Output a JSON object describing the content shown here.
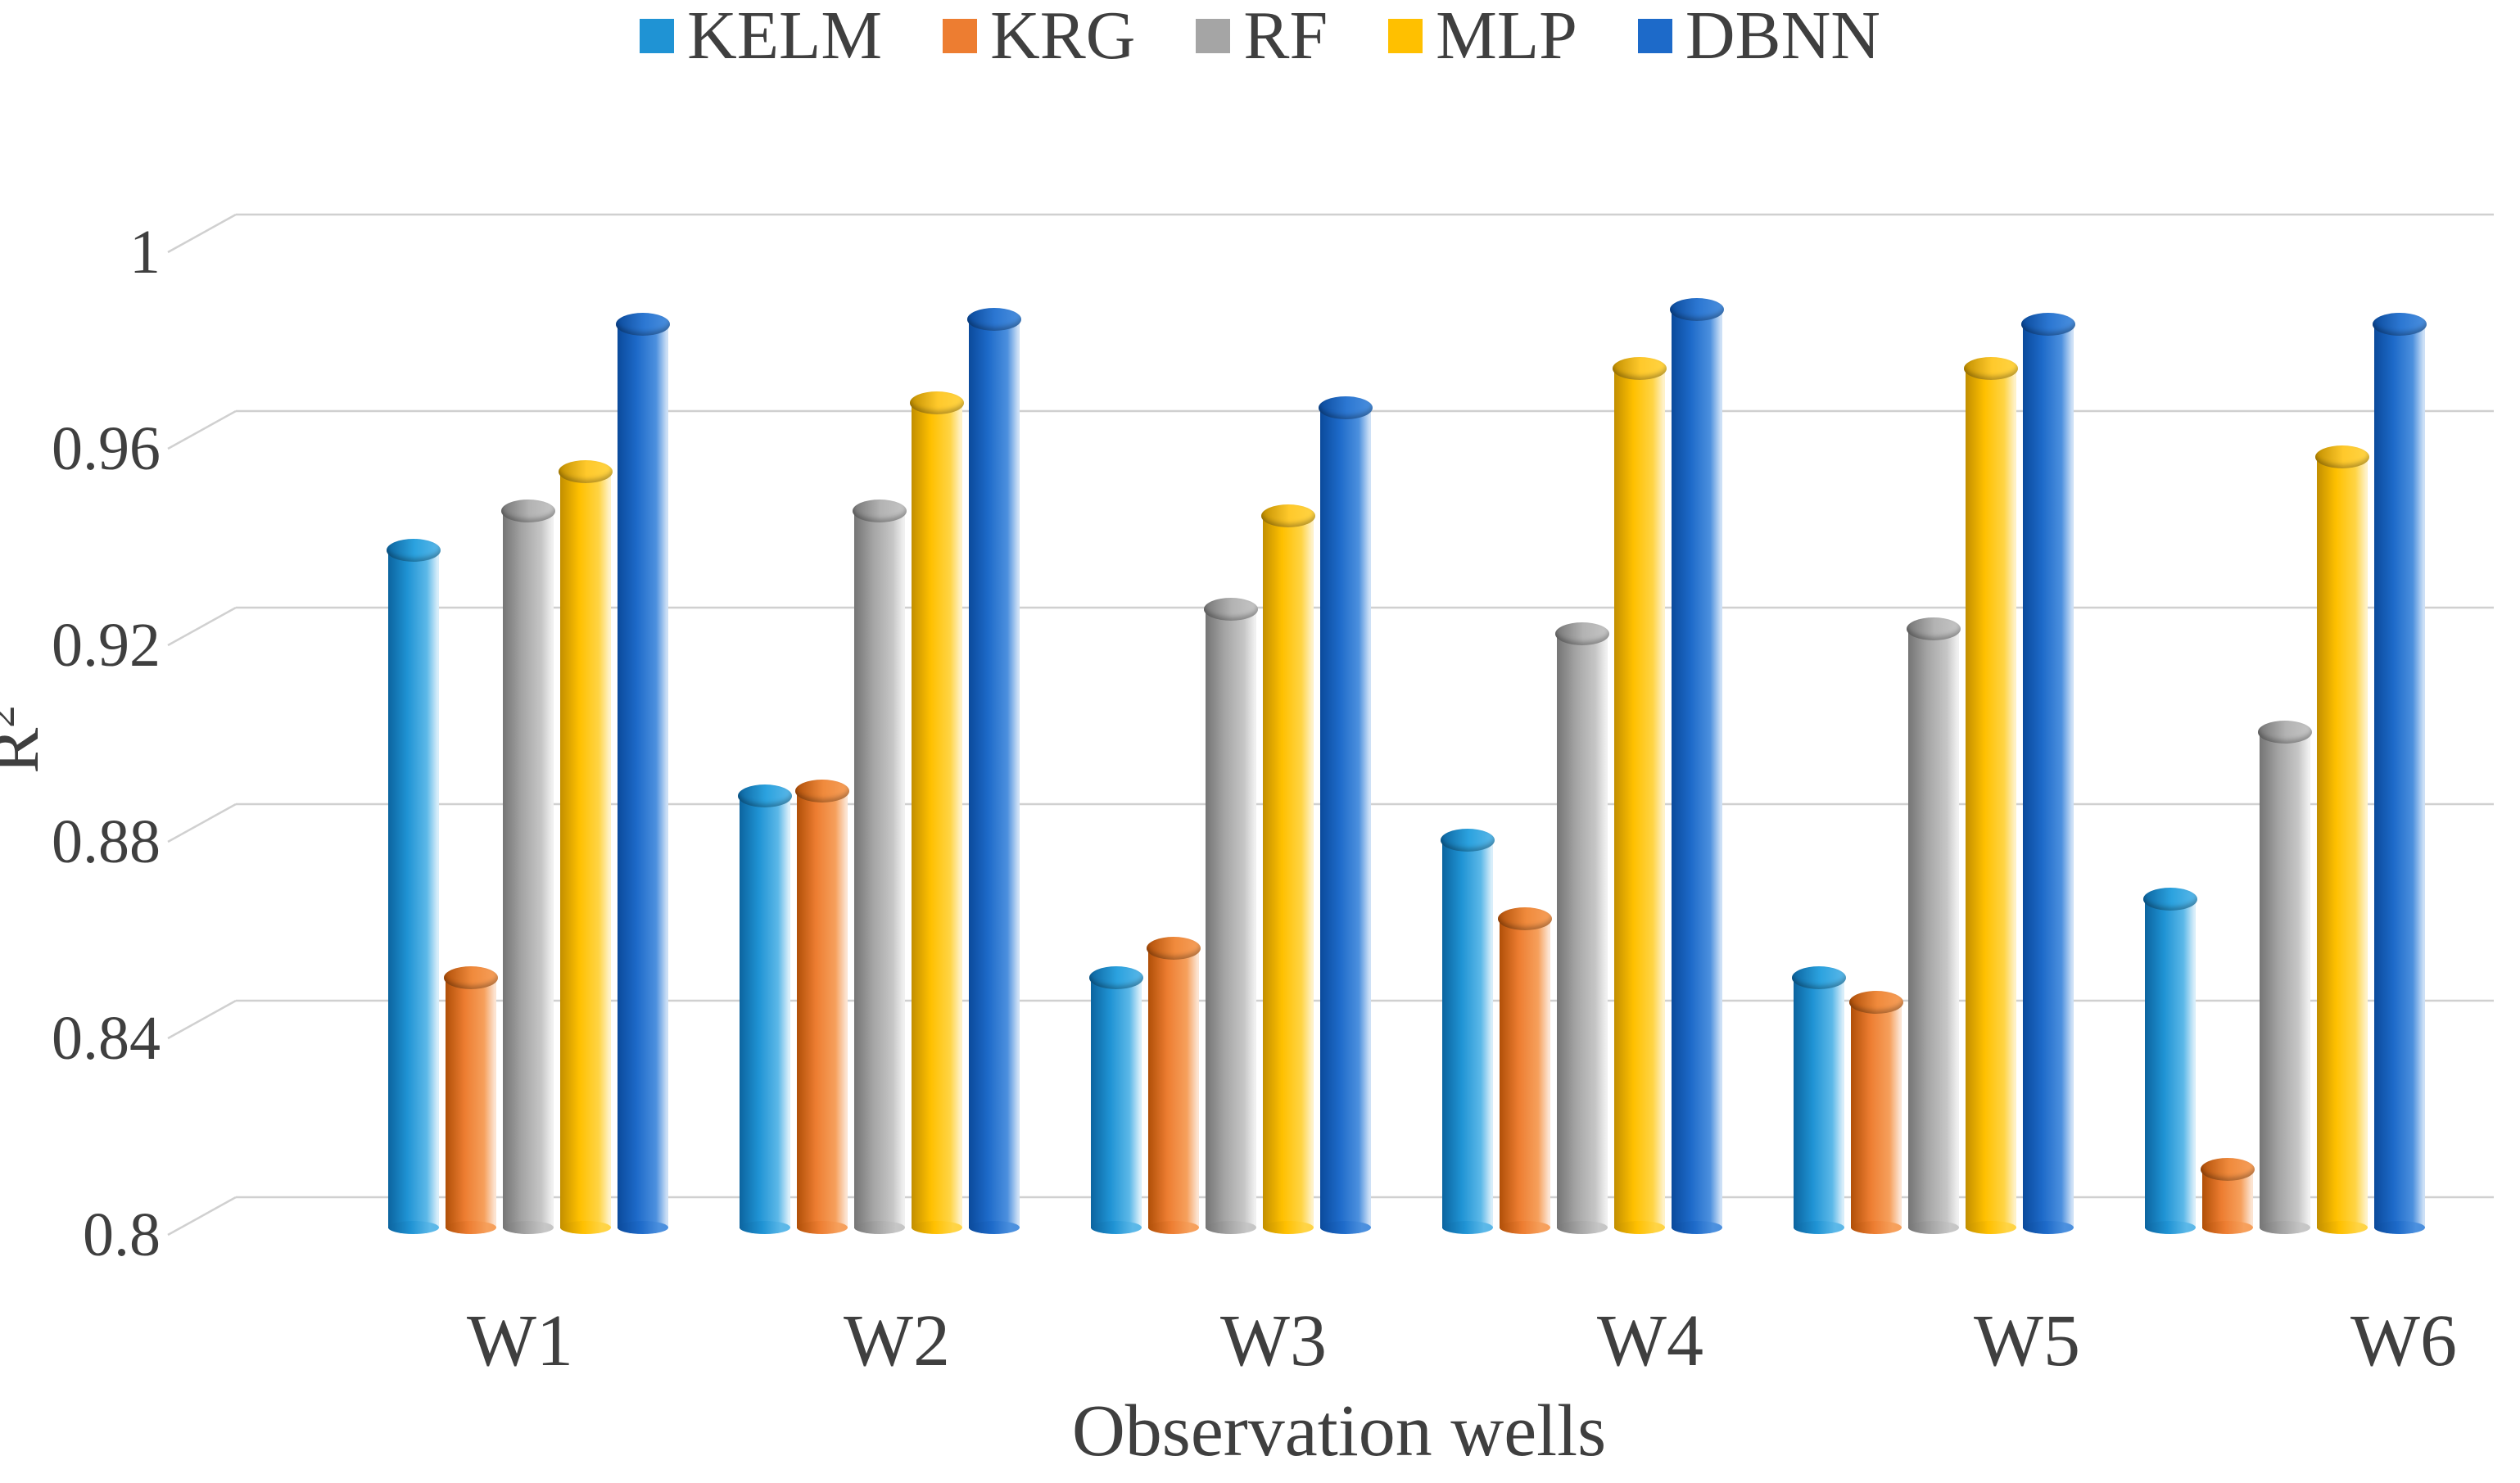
{
  "chart_data": {
    "type": "bar",
    "subtype": "3d-cylinder-column",
    "title": "",
    "xlabel": "Observation wells",
    "ylabel": "R²",
    "ylabel_base": "R",
    "ylabel_sup": "2",
    "ylim": [
      0.8,
      1.0
    ],
    "grid": true,
    "grid_color": "#D0D0D0",
    "text_color": "#3F3F3F",
    "legend_position": "top-center",
    "categories": [
      "W1",
      "W2",
      "W3",
      "W4",
      "W5",
      "W6"
    ],
    "yticks": [
      {
        "label": "1",
        "value": 1.0
      },
      {
        "label": "0.96",
        "value": 0.96
      },
      {
        "label": "0.92",
        "value": 0.92
      },
      {
        "label": "0.88",
        "value": 0.88
      },
      {
        "label": "0.84",
        "value": 0.84
      },
      {
        "label": "0.8",
        "value": 0.8
      }
    ],
    "series": [
      {
        "name": "KELM",
        "values": [
          0.938,
          0.888,
          0.851,
          0.879,
          0.851,
          0.867
        ],
        "colors": {
          "main": "#1F93D4",
          "dark": "#0C649F",
          "light": "#5CB8E8",
          "lightest": "#D8EEFA",
          "cap": "#2BA2DF"
        }
      },
      {
        "name": "KRG",
        "values": [
          0.851,
          0.889,
          0.857,
          0.863,
          0.846,
          0.812
        ],
        "colors": {
          "main": "#ED7D31",
          "dark": "#B04F08",
          "light": "#F6A05C",
          "lightest": "#FCE4D2",
          "cap": "#F08A3C"
        }
      },
      {
        "name": "RF",
        "values": [
          0.946,
          0.946,
          0.926,
          0.921,
          0.922,
          0.901
        ],
        "colors": {
          "main": "#A5A5A5",
          "dark": "#757575",
          "light": "#C6C6C6",
          "lightest": "#F0F0F0",
          "cap": "#B3B3B3"
        }
      },
      {
        "name": "MLP",
        "values": [
          0.954,
          0.968,
          0.945,
          0.975,
          0.975,
          0.957
        ],
        "colors": {
          "main": "#FFC000",
          "dark": "#C28F00",
          "light": "#FFD445",
          "lightest": "#FFF2C8",
          "cap": "#FFC92B"
        }
      },
      {
        "name": "DBNN",
        "values": [
          0.984,
          0.985,
          0.967,
          0.987,
          0.984,
          0.984
        ],
        "colors": {
          "main": "#1D6AC9",
          "dark": "#0B4A9B",
          "light": "#4C90DE",
          "lightest": "#CDE0F6",
          "cap": "#2C77D2"
        }
      }
    ]
  }
}
